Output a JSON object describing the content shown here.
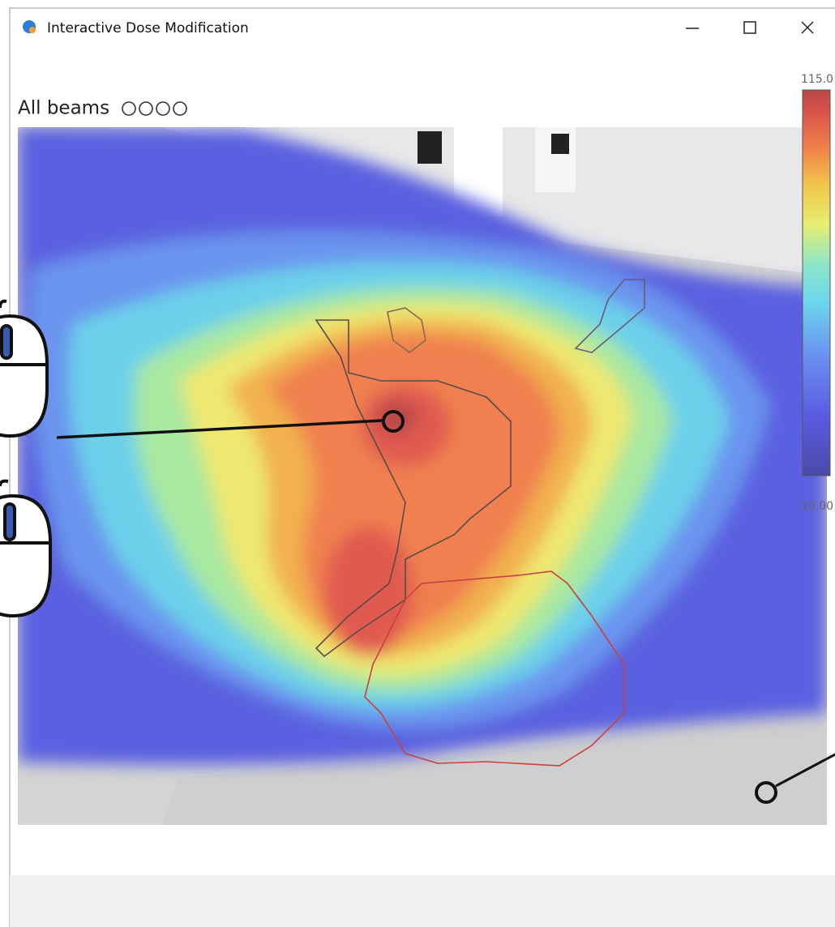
{
  "window": {
    "title": "Interactive Dose Modification"
  },
  "view": {
    "label": "All beams"
  },
  "colorbar": {
    "max_label": "115.0",
    "min_label": "10.00"
  }
}
